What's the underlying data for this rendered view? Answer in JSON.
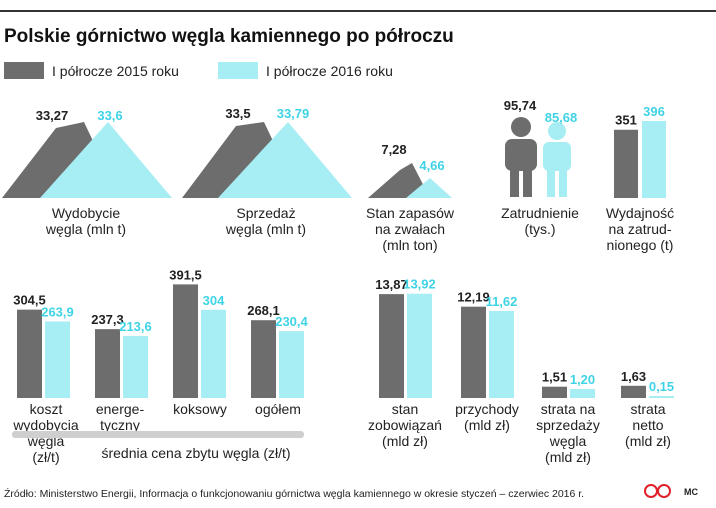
{
  "title": "Polskie górnictwo węgla kamiennego po półroczu",
  "colors": {
    "accent_dark": "#6d6d6d",
    "accent_light": "#a7eef4",
    "value_light": "#3fd3e6",
    "rule": "#333333",
    "bracket": "#cfcfcf",
    "logo": "#e0202a"
  },
  "legend": [
    {
      "label": "I półrocze 2015 roku",
      "color": "#6d6d6d"
    },
    {
      "label": "I półrocze 2016 roku",
      "color": "#a7eef4"
    }
  ],
  "chart_data": [
    {
      "type": "bar",
      "name": "Wydobycie węgla",
      "label_lines": [
        "Wydobycie",
        "węgla (mln t)"
      ],
      "series": [
        {
          "name": "I półrocze 2015 roku",
          "value": 33.27,
          "text": "33,27"
        },
        {
          "name": "I półrocze 2016 roku",
          "value": 33.6,
          "text": "33,6"
        }
      ]
    },
    {
      "type": "bar",
      "name": "Sprzedaż węgla",
      "label_lines": [
        "Sprzedaż",
        "węgla (mln t)"
      ],
      "series": [
        {
          "name": "I półrocze 2015 roku",
          "value": 33.5,
          "text": "33,5"
        },
        {
          "name": "I półrocze 2016 roku",
          "value": 33.79,
          "text": "33,79"
        }
      ]
    },
    {
      "type": "bar",
      "name": "Stan zapasów na zwałach",
      "label_lines": [
        "Stan zapasów",
        "na zwałach",
        "(mln ton)"
      ],
      "series": [
        {
          "name": "I półrocze 2015 roku",
          "value": 7.28,
          "text": "7,28"
        },
        {
          "name": "I półrocze 2016 roku",
          "value": 4.66,
          "text": "4,66"
        }
      ]
    },
    {
      "type": "bar",
      "name": "Zatrudnienie",
      "label_lines": [
        "Zatrudnienie",
        "(tys.)"
      ],
      "series": [
        {
          "name": "I półrocze 2015 roku",
          "value": 95.74,
          "text": "95,74"
        },
        {
          "name": "I półrocze 2016 roku",
          "value": 85.68,
          "text": "85,68"
        }
      ]
    },
    {
      "type": "bar",
      "name": "Wydajność na zatrudnionego",
      "label_lines": [
        "Wydajność",
        "na zatrud-",
        "nionego (t)"
      ],
      "series": [
        {
          "name": "I półrocze 2015 roku",
          "value": 351,
          "text": "351"
        },
        {
          "name": "I półrocze 2016 roku",
          "value": 396,
          "text": "396"
        }
      ]
    },
    {
      "type": "bar",
      "name": "koszt wydobycia węgla",
      "label_lines": [
        "koszt",
        "wydobycia",
        "węgla",
        "(zł/t)"
      ],
      "series": [
        {
          "name": "I półrocze 2015 roku",
          "value": 304.5,
          "text": "304,5"
        },
        {
          "name": "I półrocze 2016 roku",
          "value": 263.9,
          "text": "263,9"
        }
      ]
    },
    {
      "type": "bar",
      "name": "energetyczny",
      "label_lines": [
        "energe-",
        "tyczny"
      ],
      "series": [
        {
          "name": "I półrocze 2015 roku",
          "value": 237.3,
          "text": "237,3"
        },
        {
          "name": "I półrocze 2016 roku",
          "value": 213.6,
          "text": "213,6"
        }
      ]
    },
    {
      "type": "bar",
      "name": "koksowy",
      "label_lines": [
        "koksowy"
      ],
      "series": [
        {
          "name": "I półrocze 2015 roku",
          "value": 391.5,
          "text": "391,5"
        },
        {
          "name": "I półrocze 2016 roku",
          "value": 304,
          "text": "304"
        }
      ]
    },
    {
      "type": "bar",
      "name": "ogółem",
      "label_lines": [
        "ogółem"
      ],
      "series": [
        {
          "name": "I półrocze 2015 roku",
          "value": 268.1,
          "text": "268,1"
        },
        {
          "name": "I półrocze 2016 roku",
          "value": 230.4,
          "text": "230,4"
        }
      ]
    },
    {
      "type": "bar",
      "name": "stan zobowiązań",
      "label_lines": [
        "stan",
        "zobowiązań",
        "(mld zł)"
      ],
      "series": [
        {
          "name": "I półrocze 2015 roku",
          "value": 13.87,
          "text": "13,87"
        },
        {
          "name": "I półrocze 2016 roku",
          "value": 13.92,
          "text": "13,92"
        }
      ]
    },
    {
      "type": "bar",
      "name": "przychody",
      "label_lines": [
        "przychody",
        "(mld zł)"
      ],
      "series": [
        {
          "name": "I półrocze 2015 roku",
          "value": 12.19,
          "text": "12,19"
        },
        {
          "name": "I półrocze 2016 roku",
          "value": 11.62,
          "text": "11,62"
        }
      ]
    },
    {
      "type": "bar",
      "name": "strata na sprzedaży węgla",
      "label_lines": [
        "strata na",
        "sprzedaży",
        "węgla",
        "(mld zł)"
      ],
      "series": [
        {
          "name": "I półrocze 2015 roku",
          "value": 1.51,
          "text": "1,51"
        },
        {
          "name": "I półrocze 2016 roku",
          "value": 1.2,
          "text": "1,20"
        }
      ]
    },
    {
      "type": "bar",
      "name": "strata netto",
      "label_lines": [
        "strata",
        "netto",
        "(mld zł)"
      ],
      "series": [
        {
          "name": "I półrocze 2015 roku",
          "value": 1.63,
          "text": "1,63"
        },
        {
          "name": "I półrocze 2016 roku",
          "value": 0.15,
          "text": "0,15"
        }
      ]
    }
  ],
  "bracket_label": "średnia cena zbytu węgla (zł/t)",
  "source": "Źródło: Ministerstwo Energii, Informacja o funkcjonowaniu górnictwa węgla kamiennego w okresie styczeń – czerwiec 2016 r.",
  "credit": "MC"
}
